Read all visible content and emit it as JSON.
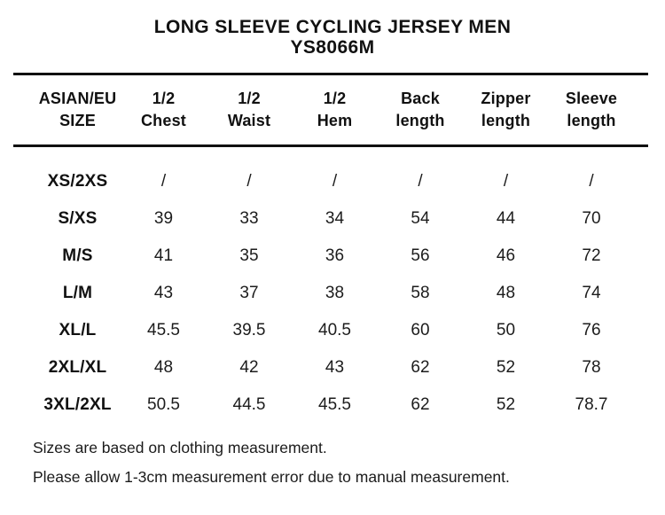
{
  "title": {
    "line1": "LONG SLEEVE CYCLING JERSEY MEN",
    "line2": "YS8066M"
  },
  "table": {
    "columns": [
      {
        "line1": "ASIAN/EU",
        "line2": "SIZE"
      },
      {
        "line1": "1/2",
        "line2": "Chest"
      },
      {
        "line1": "1/2",
        "line2": "Waist"
      },
      {
        "line1": "1/2",
        "line2": "Hem"
      },
      {
        "line1": "Back",
        "line2": "length"
      },
      {
        "line1": "Zipper",
        "line2": "length"
      },
      {
        "line1": "Sleeve",
        "line2": "length"
      }
    ],
    "rows": [
      {
        "size": "XS/2XS",
        "chest": "/",
        "waist": "/",
        "hem": "/",
        "back": "/",
        "zipper": "/",
        "sleeve": "/"
      },
      {
        "size": "S/XS",
        "chest": "39",
        "waist": "33",
        "hem": "34",
        "back": "54",
        "zipper": "44",
        "sleeve": "70"
      },
      {
        "size": "M/S",
        "chest": "41",
        "waist": "35",
        "hem": "36",
        "back": "56",
        "zipper": "46",
        "sleeve": "72"
      },
      {
        "size": "L/M",
        "chest": "43",
        "waist": "37",
        "hem": "38",
        "back": "58",
        "zipper": "48",
        "sleeve": "74"
      },
      {
        "size": "XL/L",
        "chest": "45.5",
        "waist": "39.5",
        "hem": "40.5",
        "back": "60",
        "zipper": "50",
        "sleeve": "76"
      },
      {
        "size": "2XL/XL",
        "chest": "48",
        "waist": "42",
        "hem": "43",
        "back": "62",
        "zipper": "52",
        "sleeve": "78"
      },
      {
        "size": "3XL/2XL",
        "chest": "50.5",
        "waist": "44.5",
        "hem": "45.5",
        "back": "62",
        "zipper": "52",
        "sleeve": "78.7"
      }
    ]
  },
  "notes": [
    "Sizes are based on clothing measurement.",
    "Please allow 1-3cm measurement error due to manual measurement."
  ],
  "colors": {
    "text": "#111111",
    "rule": "#101010",
    "background": "#ffffff"
  }
}
